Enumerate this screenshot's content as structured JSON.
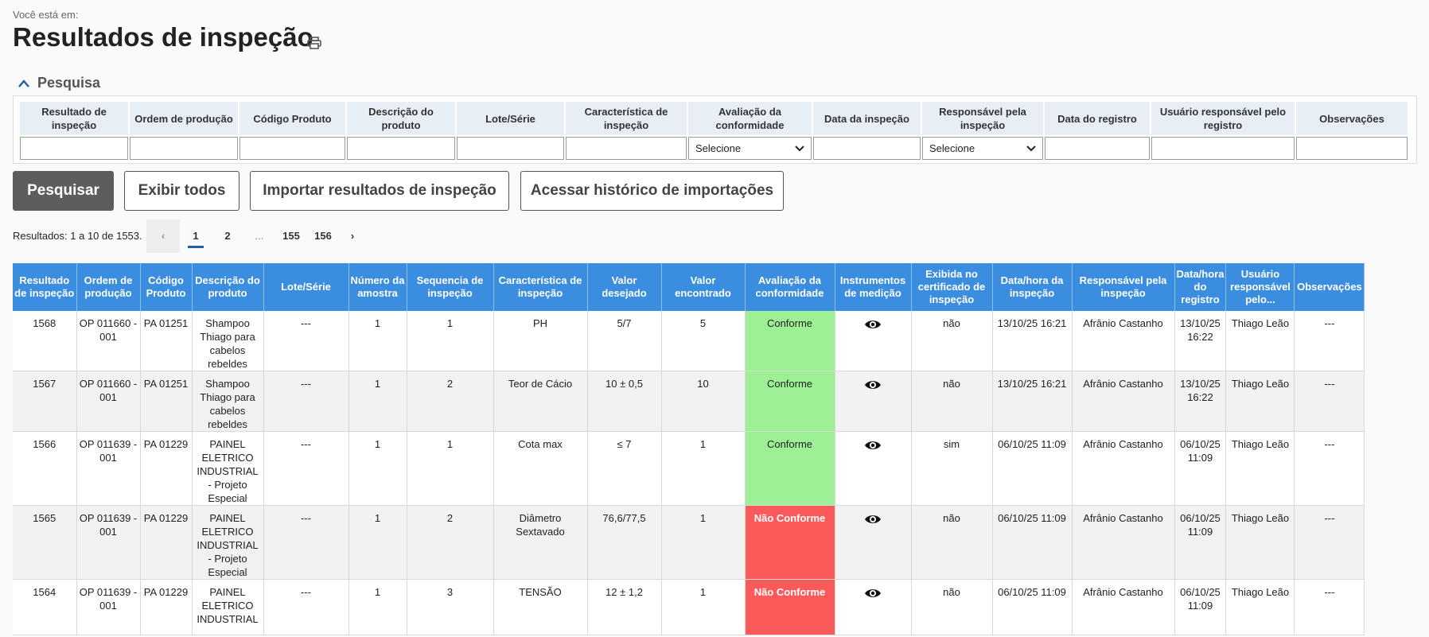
{
  "breadcrumb": "Você está em:",
  "title": "Resultados de inspeção",
  "search": {
    "label": "Pesquisa",
    "filters": [
      {
        "label": "Resultado de inspeção",
        "value": ""
      },
      {
        "label": "Ordem de produção",
        "value": ""
      },
      {
        "label": "Código Produto",
        "value": ""
      },
      {
        "label": "Descrição do produto",
        "value": ""
      },
      {
        "label": "Lote/Série",
        "value": ""
      },
      {
        "label": "Característica de inspeção",
        "value": ""
      },
      {
        "label": "Avaliação da conformidade",
        "value": "Selecione"
      },
      {
        "label": "Data da inspeção",
        "value": ""
      },
      {
        "label": "Responsável pela inspeção",
        "value": "Selecione"
      },
      {
        "label": "Data do registro",
        "value": ""
      },
      {
        "label": "Usuário responsável pelo registro",
        "value": ""
      },
      {
        "label": "Observações",
        "value": ""
      }
    ]
  },
  "buttons": {
    "search": "Pesquisar",
    "show_all": "Exibir todos",
    "import": "Importar resultados de inspeção",
    "history": "Acessar histórico de importações"
  },
  "results_info": "Resultados: 1 a 10 de 1553.",
  "pagination": {
    "pages": [
      "1",
      "2",
      "...",
      "155",
      "156"
    ],
    "current": "1"
  },
  "colors": {
    "header": "#3b8de0",
    "conforme": "#9df094",
    "nao_conforme": "#fa5a5a"
  },
  "icons": {
    "row_action": "eye-icon",
    "print": "printer-icon"
  },
  "table": {
    "headers": [
      "Resultado de inspeção",
      "Ordem de produção",
      "Código Produto",
      "Descrição do produto",
      "Lote/Série",
      "Número da amostra",
      "Sequencia de inspeção",
      "Característica de inspeção",
      "Valor desejado",
      "Valor encontrado",
      "Avaliação da conformidade",
      "Instrumentos de medição",
      "Exibida no certificado de inspeção",
      "Data/hora da inspeção",
      "Responsável pela inspeção",
      "Data/hora do registro",
      "Usuário responsável pelo...",
      "Observações"
    ],
    "rows": [
      {
        "resultado": "1568",
        "ordem": "OP 011660 - 001",
        "codigo": "PA 01251",
        "descricao": "Shampoo Thiago para cabelos rebeldes",
        "lote": "---",
        "amostra": "1",
        "sequencia": "1",
        "caracteristica": "PH",
        "desejado": "5/7",
        "encontrado": "5",
        "avaliacao": "Conforme",
        "exibida": "não",
        "data_inspecao": "13/10/25 16:21",
        "responsavel": "Afrânio Castanho",
        "data_registro": "13/10/25 16:22",
        "usuario": "Thiago Leão",
        "obs": "---"
      },
      {
        "resultado": "1567",
        "ordem": "OP 011660 - 001",
        "codigo": "PA 01251",
        "descricao": "Shampoo Thiago para cabelos rebeldes",
        "lote": "---",
        "amostra": "1",
        "sequencia": "2",
        "caracteristica": "Teor de Cácio",
        "desejado": "10 ± 0,5",
        "encontrado": "10",
        "avaliacao": "Conforme",
        "exibida": "não",
        "data_inspecao": "13/10/25 16:21",
        "responsavel": "Afrânio Castanho",
        "data_registro": "13/10/25 16:22",
        "usuario": "Thiago Leão",
        "obs": "---"
      },
      {
        "resultado": "1566",
        "ordem": "OP 011639 - 001",
        "codigo": "PA 01229",
        "descricao": "PAINEL ELETRICO INDUSTRIAL - Projeto Especial",
        "lote": "---",
        "amostra": "1",
        "sequencia": "1",
        "caracteristica": "Cota max",
        "desejado": "≤ 7",
        "encontrado": "1",
        "avaliacao": "Conforme",
        "exibida": "sim",
        "data_inspecao": "06/10/25 11:09",
        "responsavel": "Afrânio Castanho",
        "data_registro": "06/10/25 11:09",
        "usuario": "Thiago Leão",
        "obs": "---"
      },
      {
        "resultado": "1565",
        "ordem": "OP 011639 - 001",
        "codigo": "PA 01229",
        "descricao": "PAINEL ELETRICO INDUSTRIAL - Projeto Especial",
        "lote": "---",
        "amostra": "1",
        "sequencia": "2",
        "caracteristica": "Diâmetro Sextavado",
        "desejado": "76,6/77,5",
        "encontrado": "1",
        "avaliacao": "Não Conforme",
        "exibida": "não",
        "data_inspecao": "06/10/25 11:09",
        "responsavel": "Afrânio Castanho",
        "data_registro": "06/10/25 11:09",
        "usuario": "Thiago Leão",
        "obs": "---"
      },
      {
        "resultado": "1564",
        "ordem": "OP 011639 - 001",
        "codigo": "PA 01229",
        "descricao": "PAINEL ELETRICO INDUSTRIAL",
        "lote": "---",
        "amostra": "1",
        "sequencia": "3",
        "caracteristica": "TENSÃO",
        "desejado": "12 ± 1,2",
        "encontrado": "1",
        "avaliacao": "Não Conforme",
        "exibida": "não",
        "data_inspecao": "06/10/25 11:09",
        "responsavel": "Afrânio Castanho",
        "data_registro": "06/10/25 11:09",
        "usuario": "Thiago Leão",
        "obs": "---"
      }
    ]
  }
}
